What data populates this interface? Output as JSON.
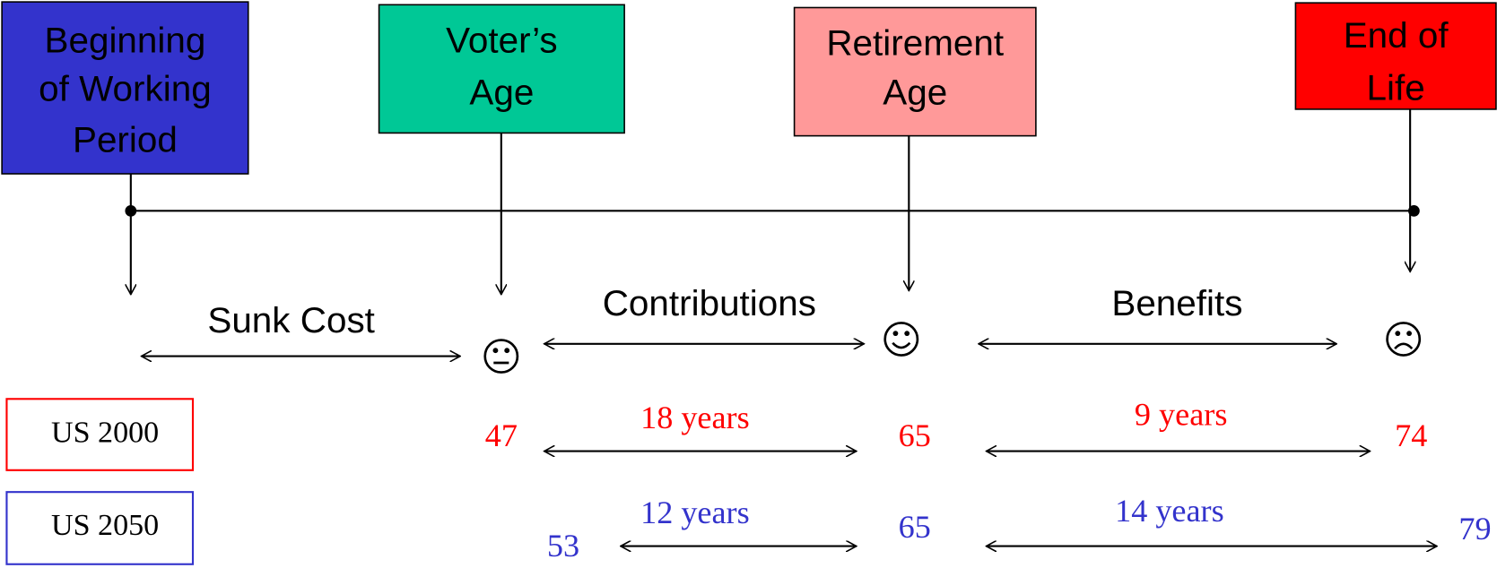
{
  "boxes": [
    {
      "lines": [
        "Beginning",
        "of Working",
        "Period"
      ]
    },
    {
      "lines": [
        "Voter’s",
        "Age"
      ]
    },
    {
      "lines": [
        "Retirement",
        "Age"
      ]
    },
    {
      "lines": [
        "End of",
        "Life"
      ]
    }
  ],
  "periods": [
    "Sunk Cost",
    "Contributions",
    "Benefits"
  ],
  "rows": [
    {
      "label": "US 2000",
      "ages": [
        47,
        65,
        74
      ],
      "spans": [
        "18 years",
        "9 years"
      ]
    },
    {
      "label": "US 2050",
      "ages": [
        53,
        65,
        79
      ],
      "spans": [
        "12 years",
        "14 years"
      ]
    }
  ]
}
